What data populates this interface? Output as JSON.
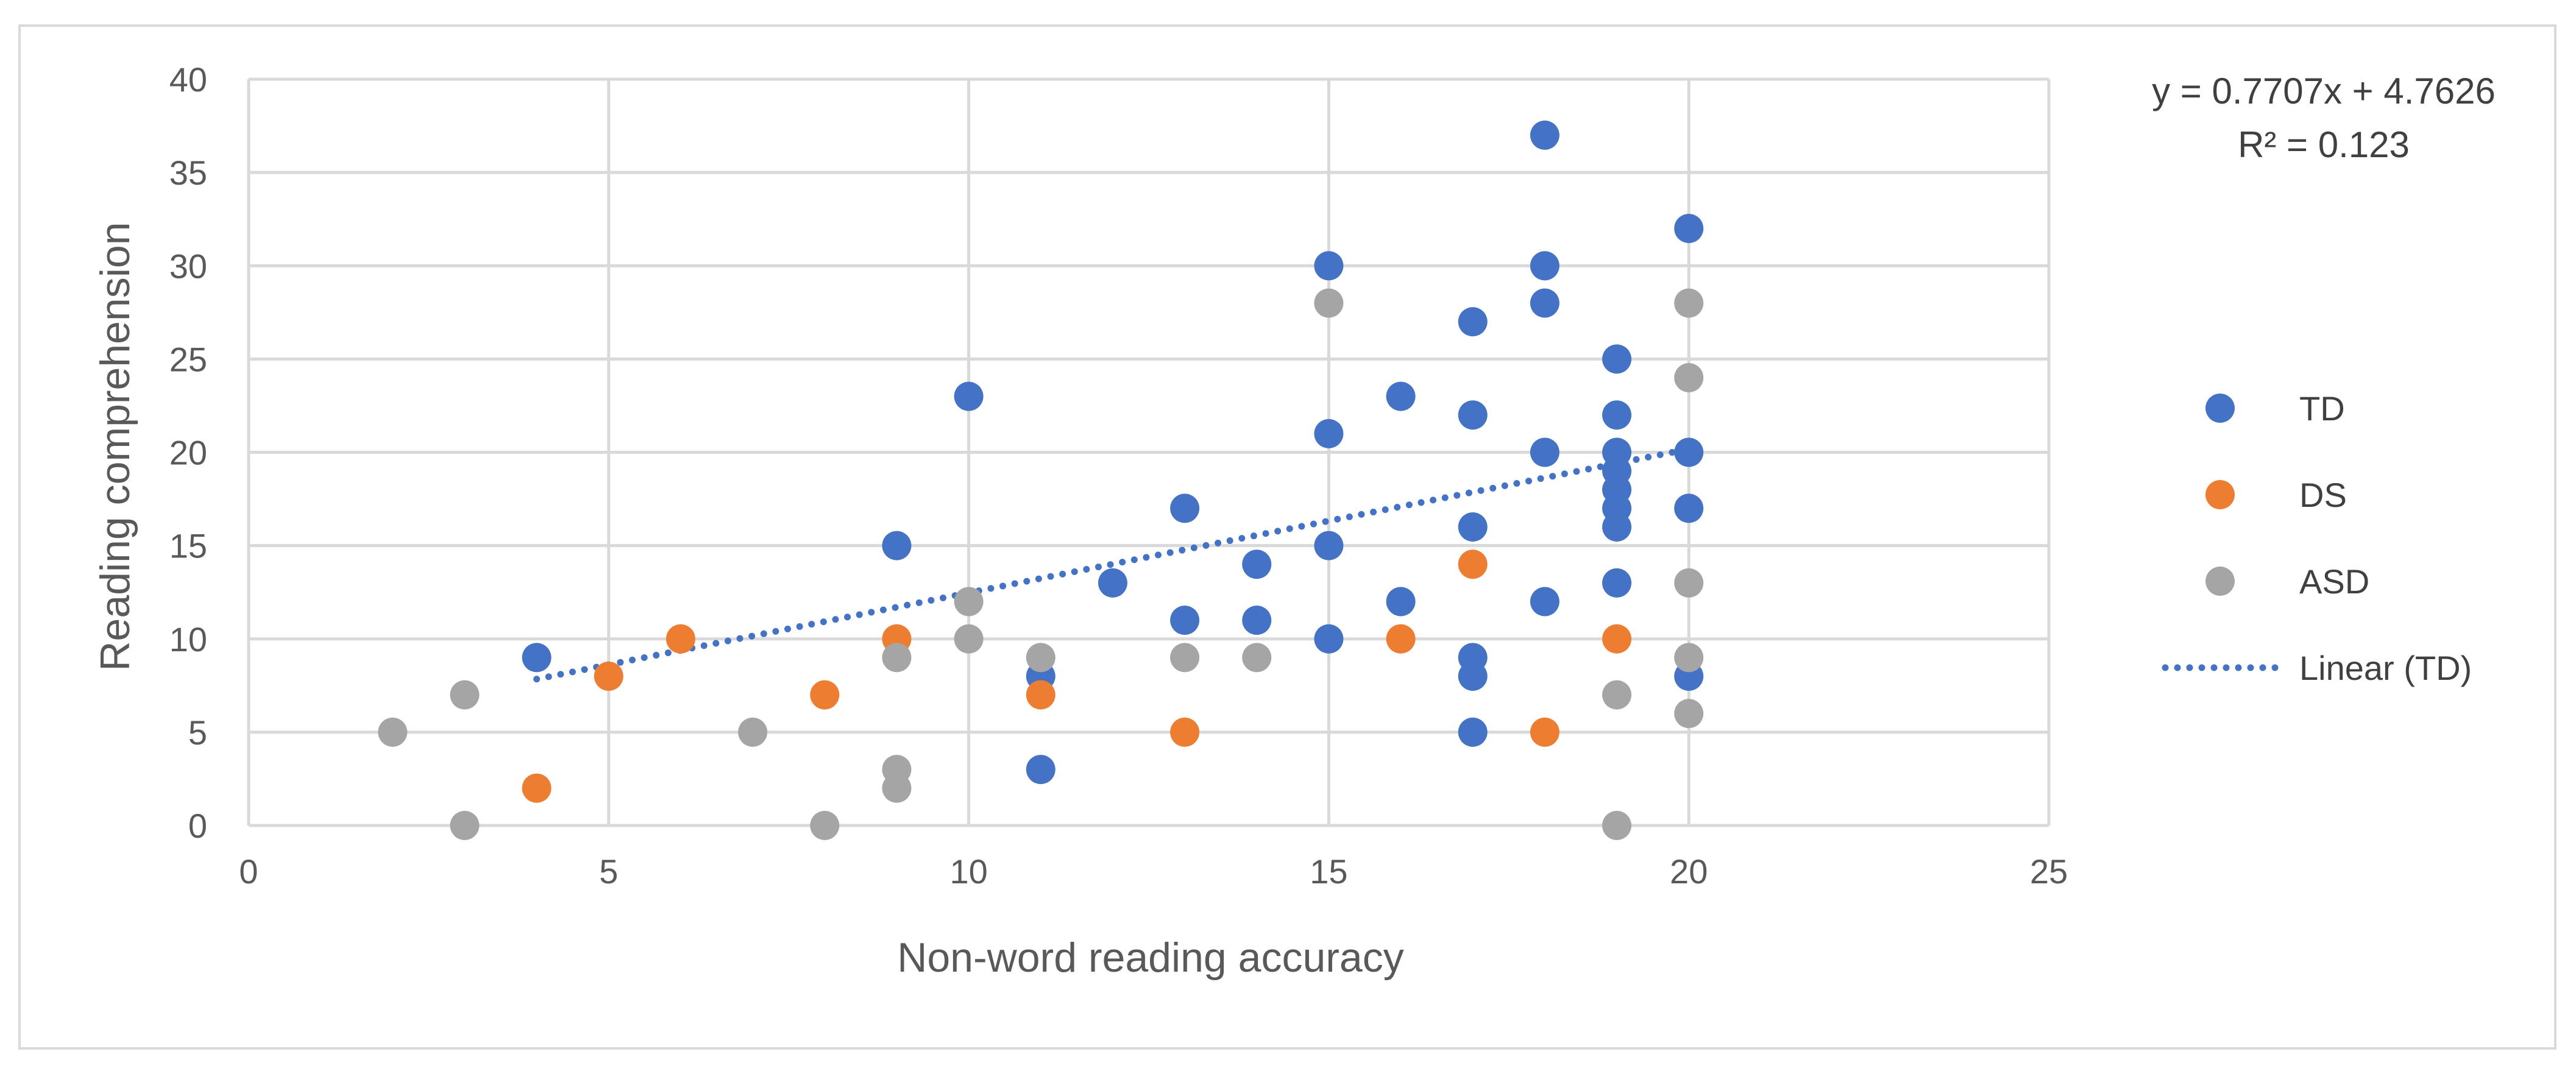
{
  "chart_data": {
    "type": "scatter",
    "xlabel": "Non-word reading accuracy",
    "ylabel": "Reading comprehension",
    "xlim": [
      0,
      25
    ],
    "ylim": [
      0,
      40
    ],
    "xticks": [
      0,
      5,
      10,
      15,
      20,
      25
    ],
    "yticks": [
      0,
      5,
      10,
      15,
      20,
      25,
      30,
      35,
      40
    ],
    "grid": true,
    "legend_position": "right",
    "series": [
      {
        "name": "TD",
        "color": "#4472c4",
        "points": [
          [
            4,
            9
          ],
          [
            9,
            15
          ],
          [
            10,
            23
          ],
          [
            11,
            8
          ],
          [
            11,
            3
          ],
          [
            12,
            13
          ],
          [
            13,
            17
          ],
          [
            13,
            11
          ],
          [
            14,
            14
          ],
          [
            14,
            11
          ],
          [
            15,
            30
          ],
          [
            15,
            21
          ],
          [
            15,
            15
          ],
          [
            15,
            10
          ],
          [
            16,
            23
          ],
          [
            16,
            12
          ],
          [
            17,
            27
          ],
          [
            17,
            22
          ],
          [
            17,
            16
          ],
          [
            17,
            9
          ],
          [
            17,
            8
          ],
          [
            17,
            5
          ],
          [
            18,
            37
          ],
          [
            18,
            30
          ],
          [
            18,
            28
          ],
          [
            18,
            20
          ],
          [
            18,
            12
          ],
          [
            19,
            25
          ],
          [
            19,
            22
          ],
          [
            19,
            20
          ],
          [
            19,
            19
          ],
          [
            19,
            18
          ],
          [
            19,
            17
          ],
          [
            19,
            16
          ],
          [
            19,
            13
          ],
          [
            20,
            32
          ],
          [
            20,
            20
          ],
          [
            20,
            17
          ],
          [
            20,
            8
          ]
        ]
      },
      {
        "name": "DS",
        "color": "#ed7d31",
        "points": [
          [
            4,
            2
          ],
          [
            5,
            8
          ],
          [
            6,
            10
          ],
          [
            8,
            7
          ],
          [
            9,
            10
          ],
          [
            11,
            7
          ],
          [
            13,
            5
          ],
          [
            16,
            10
          ],
          [
            17,
            14
          ],
          [
            18,
            5
          ],
          [
            19,
            10
          ]
        ]
      },
      {
        "name": "ASD",
        "color": "#a5a5a5",
        "points": [
          [
            2,
            5
          ],
          [
            3,
            7
          ],
          [
            3,
            0
          ],
          [
            7,
            5
          ],
          [
            8,
            0
          ],
          [
            9,
            9
          ],
          [
            9,
            3
          ],
          [
            9,
            2
          ],
          [
            10,
            12
          ],
          [
            10,
            10
          ],
          [
            11,
            9
          ],
          [
            13,
            9
          ],
          [
            14,
            9
          ],
          [
            15,
            28
          ],
          [
            19,
            7
          ],
          [
            19,
            0
          ],
          [
            20,
            28
          ],
          [
            20,
            24
          ],
          [
            20,
            13
          ],
          [
            20,
            9
          ],
          [
            20,
            6
          ]
        ]
      }
    ],
    "trendline": {
      "name": "Linear (TD)",
      "color": "#4472c4",
      "style": "dotted",
      "slope": 0.7707,
      "intercept": 4.7626,
      "x_range": [
        4,
        20
      ],
      "equation_label": "y = 0.7707x + 4.7626",
      "r2_label": "R² = 0.123"
    }
  }
}
